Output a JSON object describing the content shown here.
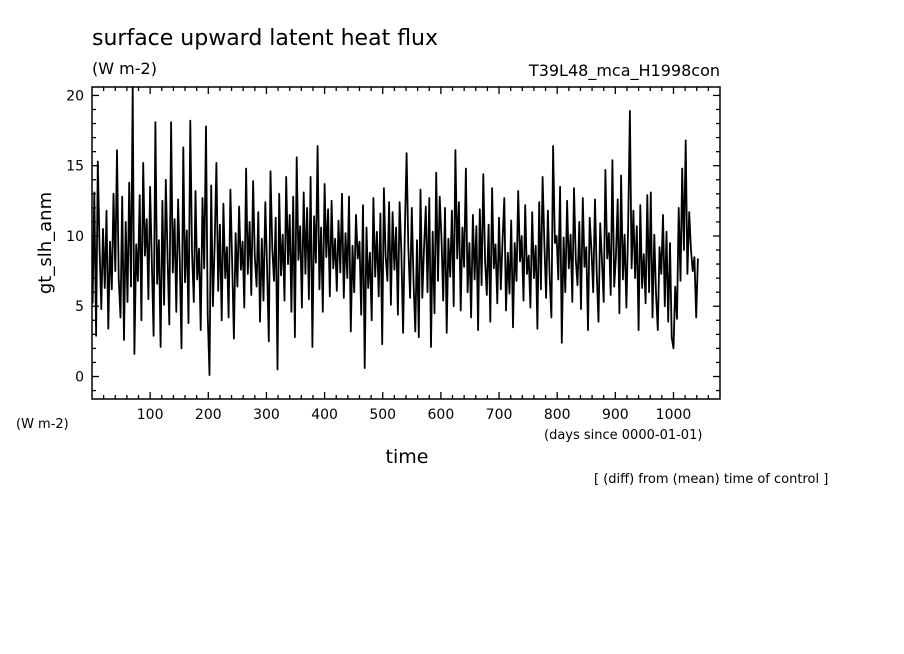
{
  "chart_data": {
    "type": "line",
    "title": "surface upward latent heat flux",
    "subtitle": "(W m-2)",
    "run_label": "T39L48_mca_H1998con",
    "ylabel": "gt_slh_anm",
    "y_units": "(W m-2)",
    "xlabel": "time",
    "x_units": "(days since 0000-01-01)",
    "footnote": "[ (diff) from (mean) time of control ]",
    "xlim": [
      0,
      1080
    ],
    "ylim": [
      -1.6,
      20.6
    ],
    "x_ticks": [
      100,
      200,
      300,
      400,
      500,
      600,
      700,
      800,
      900,
      1000
    ],
    "y_ticks": [
      0,
      5,
      10,
      15,
      20
    ],
    "grid": false,
    "series": [
      {
        "x_start": 1,
        "x_step": 3,
        "values": [
          5.2,
          13.1,
          2.9,
          15.3,
          9.0,
          4.8,
          10.5,
          6.3,
          11.8,
          3.4,
          9.6,
          6.2,
          13.0,
          7.5,
          16.1,
          7.0,
          4.2,
          12.8,
          2.6,
          11.0,
          5.3,
          13.8,
          6.4,
          20.7,
          1.6,
          9.4,
          6.8,
          12.9,
          4.0,
          15.2,
          8.6,
          11.2,
          5.5,
          13.5,
          7.9,
          2.9,
          18.1,
          6.6,
          9.7,
          2.1,
          12.5,
          5.1,
          14.0,
          8.4,
          3.7,
          18.1,
          7.4,
          11.2,
          4.6,
          12.6,
          8.1,
          2.0,
          16.3,
          6.7,
          10.4,
          3.8,
          18.2,
          8.9,
          5.3,
          13.2,
          6.9,
          9.1,
          3.3,
          12.7,
          7.7,
          17.8,
          4.4,
          0.1,
          13.6,
          5.0,
          9.5,
          15.2,
          6.1,
          10.8,
          4.0,
          12.3,
          7.0,
          9.2,
          4.2,
          13.3,
          8.3,
          2.7,
          10.2,
          6.4,
          12.1,
          7.6,
          9.6,
          4.9,
          14.8,
          7.3,
          11.0,
          5.8,
          13.9,
          8.5,
          6.4,
          11.7,
          3.9,
          9.8,
          5.4,
          12.4,
          7.9,
          2.5,
          14.6,
          9.1,
          6.8,
          11.3,
          0.5,
          13.0,
          7.2,
          10.1,
          5.4,
          14.2,
          8.0,
          11.5,
          4.6,
          12.8,
          2.8,
          15.6,
          8.3,
          10.7,
          4.9,
          13.1,
          7.3,
          12.0,
          5.5,
          14.2,
          2.1,
          11.4,
          8.1,
          16.4,
          6.2,
          10.6,
          4.6,
          13.7,
          8.5,
          11.9,
          5.7,
          12.5,
          7.7,
          9.8,
          6.1,
          11.1,
          7.4,
          13.0,
          5.6,
          10.2,
          7.0,
          12.8,
          3.2,
          9.3,
          6.0,
          11.5,
          8.4,
          9.6,
          4.4,
          12.2,
          0.6,
          10.6,
          6.3,
          8.8,
          4.0,
          12.7,
          7.1,
          10.3,
          5.7,
          11.6,
          2.3,
          13.4,
          8.6,
          6.8,
          12.4,
          5.1,
          11.7,
          7.6,
          10.6,
          4.4,
          12.4,
          9.0,
          3.1,
          10.2,
          15.9,
          9.3,
          5.6,
          12.0,
          6.6,
          3.2,
          9.7,
          2.8,
          13.3,
          5.6,
          9.1,
          12.1,
          6.0,
          12.7,
          2.1,
          10.3,
          4.5,
          14.5,
          6.8,
          12.8,
          9.8,
          5.4,
          12.0,
          3.1,
          9.8,
          7.1,
          11.8,
          5.0,
          16.1,
          8.4,
          12.4,
          4.7,
          10.6,
          7.8,
          14.8,
          6.0,
          9.5,
          4.2,
          11.5,
          6.9,
          10.7,
          3.3,
          11.9,
          6.5,
          14.4,
          8.2,
          5.8,
          10.8,
          3.9,
          13.4,
          7.7,
          9.4,
          5.2,
          11.3,
          6.2,
          9.6,
          12.7,
          4.7,
          8.8,
          5.9,
          11.1,
          3.5,
          9.5,
          6.8,
          13.2,
          8.2,
          10.0,
          5.4,
          12.2,
          7.3,
          8.6,
          4.9,
          11.7,
          7.0,
          9.3,
          3.4,
          12.4,
          6.2,
          14.2,
          9.4,
          5.6,
          11.8,
          7.2,
          4.2,
          16.4,
          9.5,
          10.0,
          6.9,
          13.5,
          2.4,
          9.9,
          6.0,
          12.5,
          7.7,
          10.1,
          5.3,
          13.4,
          8.3,
          6.5,
          11.0,
          4.8,
          12.7,
          7.8,
          9.2,
          3.3,
          11.3,
          8.9,
          6.0,
          12.6,
          7.4,
          3.9,
          10.9,
          8.2,
          5.3,
          14.7,
          8.4,
          10.2,
          5.8,
          15.4,
          6.4,
          8.5,
          12.6,
          4.5,
          14.3,
          6.9,
          10.1,
          4.9,
          10.5,
          18.9,
          7.7,
          11.8,
          7.0,
          10.7,
          3.3,
          12.2,
          6.3,
          8.7,
          5.2,
          12.9,
          6.0,
          13.1,
          4.2,
          10.1,
          5.9,
          3.3,
          9.2,
          7.3,
          11.5,
          5.0,
          10.3,
          3.9,
          9.5,
          2.8,
          2.0,
          6.4,
          4.1,
          12.0,
          6.8,
          14.8,
          9.0,
          16.8,
          7.3,
          11.7,
          9.1,
          7.5,
          8.5,
          4.2,
          8.4
        ]
      }
    ]
  }
}
